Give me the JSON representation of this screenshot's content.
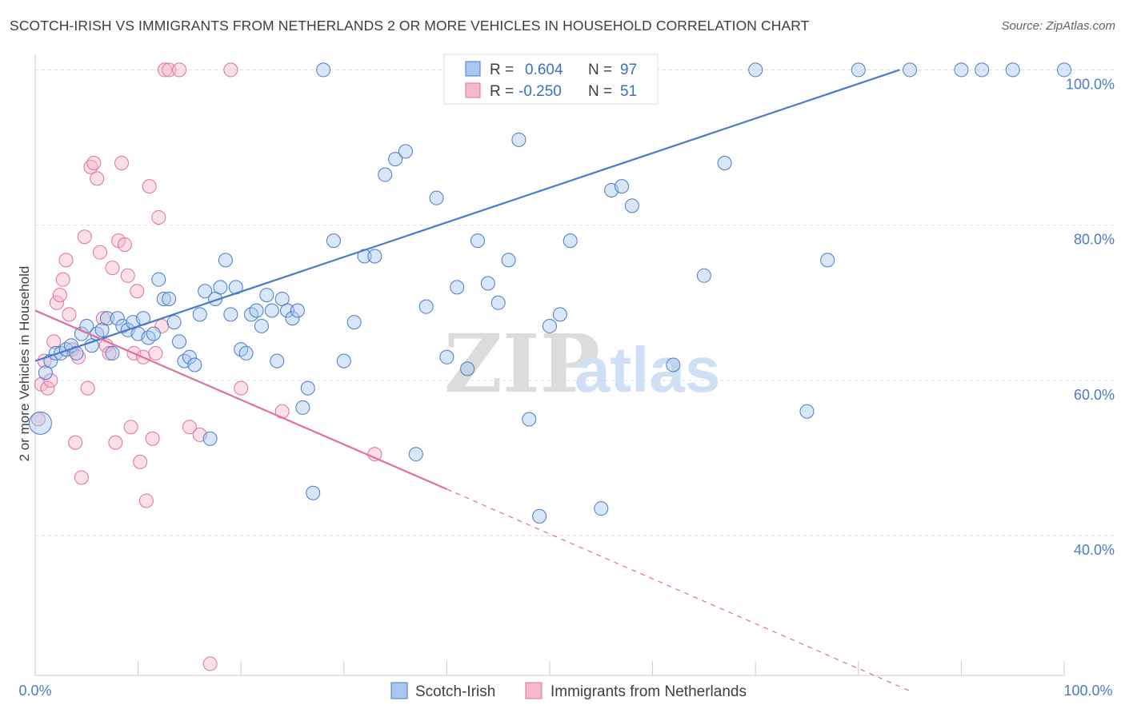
{
  "title": "SCOTCH-IRISH VS IMMIGRANTS FROM NETHERLANDS 2 OR MORE VEHICLES IN HOUSEHOLD CORRELATION CHART",
  "source": "Source: ZipAtlas.com",
  "watermark": {
    "zip": "ZIP",
    "atlas": "atlas"
  },
  "colors": {
    "blue": "#4a7bc8",
    "blue_fill": "#a9c8ee",
    "pink": "#e0709a",
    "pink_fill": "#f5b8cc",
    "grid": "#dddddd"
  },
  "legend": {
    "rows": [
      {
        "r_label": "R = ",
        "r_value": "0.604",
        "n_label": "N = ",
        "n_value": "97"
      },
      {
        "r_label": "R = ",
        "r_value": "-0.250",
        "n_label": "N = ",
        "n_value": "51"
      }
    ]
  },
  "bottom_legend": [
    "Scotch-Irish",
    "Immigrants from Netherlands"
  ],
  "chart_data": {
    "type": "scatter",
    "xlabel": "",
    "ylabel": "2 or more Vehicles in Household",
    "xlim": [
      0,
      100
    ],
    "ylim": [
      22,
      102
    ],
    "x_tick_labels": [
      "0.0%",
      "100.0%"
    ],
    "y_ticks": [
      40,
      60,
      80,
      100
    ],
    "y_tick_labels": [
      "40.0%",
      "60.0%",
      "80.0%",
      "100.0%"
    ],
    "grid": true,
    "legend_position": "top-center",
    "series": [
      {
        "name": "Scotch-Irish",
        "R": 0.604,
        "N": 97,
        "trend": [
          [
            0,
            62.5
          ],
          [
            84,
            100
          ]
        ],
        "points": [
          [
            0.5,
            54.5
          ],
          [
            1,
            61
          ],
          [
            1.5,
            62.5
          ],
          [
            2,
            63.5
          ],
          [
            2.5,
            63.5
          ],
          [
            3,
            64
          ],
          [
            3.5,
            64.5
          ],
          [
            4,
            63.5
          ],
          [
            4.5,
            66
          ],
          [
            5,
            67
          ],
          [
            5.5,
            64.5
          ],
          [
            6,
            66
          ],
          [
            6.5,
            66.5
          ],
          [
            7,
            68
          ],
          [
            7.5,
            63.5
          ],
          [
            8,
            68
          ],
          [
            8.5,
            67
          ],
          [
            9,
            66.5
          ],
          [
            9.5,
            67.5
          ],
          [
            10,
            66
          ],
          [
            10.5,
            68
          ],
          [
            11,
            65.5
          ],
          [
            11.5,
            66
          ],
          [
            12,
            73
          ],
          [
            12.5,
            70.5
          ],
          [
            13,
            70.5
          ],
          [
            13.5,
            67.5
          ],
          [
            14,
            65
          ],
          [
            14.5,
            62.5
          ],
          [
            15,
            63
          ],
          [
            15.5,
            62
          ],
          [
            16,
            68.5
          ],
          [
            16.5,
            71.5
          ],
          [
            17,
            52.5
          ],
          [
            17.5,
            70.5
          ],
          [
            18,
            72
          ],
          [
            18.5,
            75.5
          ],
          [
            19,
            68.5
          ],
          [
            19.5,
            72
          ],
          [
            20,
            64
          ],
          [
            20.5,
            63.5
          ],
          [
            21,
            68.5
          ],
          [
            21.5,
            69
          ],
          [
            22,
            67
          ],
          [
            22.5,
            71
          ],
          [
            23,
            69
          ],
          [
            23.5,
            62.5
          ],
          [
            24,
            70.5
          ],
          [
            24.5,
            69
          ],
          [
            25,
            68
          ],
          [
            25.5,
            69
          ],
          [
            26,
            56.5
          ],
          [
            26.5,
            59
          ],
          [
            27,
            45.5
          ],
          [
            28,
            100
          ],
          [
            29,
            78
          ],
          [
            30,
            62.5
          ],
          [
            31,
            67.5
          ],
          [
            32,
            76
          ],
          [
            33,
            76
          ],
          [
            34,
            86.5
          ],
          [
            35,
            88.5
          ],
          [
            36,
            89.5
          ],
          [
            37,
            50.5
          ],
          [
            38,
            69.5
          ],
          [
            39,
            83.5
          ],
          [
            40,
            63
          ],
          [
            41,
            72
          ],
          [
            42,
            61.5
          ],
          [
            43,
            78
          ],
          [
            44,
            72.5
          ],
          [
            45,
            70
          ],
          [
            46,
            75.5
          ],
          [
            47,
            91
          ],
          [
            48,
            55
          ],
          [
            49,
            42.5
          ],
          [
            50,
            67
          ],
          [
            51,
            68.5
          ],
          [
            52,
            78
          ],
          [
            53,
            100
          ],
          [
            54,
            100
          ],
          [
            55,
            43.5
          ],
          [
            56,
            84.5
          ],
          [
            57,
            85
          ],
          [
            58,
            82.5
          ],
          [
            62,
            62
          ],
          [
            65,
            73.5
          ],
          [
            67,
            88
          ],
          [
            70,
            100
          ],
          [
            75,
            56
          ],
          [
            77,
            75.5
          ],
          [
            80,
            100
          ],
          [
            85,
            100
          ],
          [
            90,
            100
          ],
          [
            92,
            100
          ],
          [
            95,
            100
          ],
          [
            100,
            100
          ]
        ]
      },
      {
        "name": "Immigrants from Netherlands",
        "R": -0.25,
        "N": 51,
        "trend": [
          [
            0,
            69
          ],
          [
            40,
            46
          ]
        ],
        "trend_dashed": [
          [
            40,
            46
          ],
          [
            85,
            20
          ]
        ],
        "points": [
          [
            0.3,
            55
          ],
          [
            0.6,
            59.5
          ],
          [
            0.9,
            62.5
          ],
          [
            1.2,
            59
          ],
          [
            1.5,
            60
          ],
          [
            1.8,
            65
          ],
          [
            2.1,
            70
          ],
          [
            2.4,
            71
          ],
          [
            2.7,
            73
          ],
          [
            3,
            75.5
          ],
          [
            3.3,
            68.5
          ],
          [
            3.6,
            64
          ],
          [
            3.9,
            52
          ],
          [
            4.2,
            63
          ],
          [
            4.5,
            47.5
          ],
          [
            4.8,
            78.5
          ],
          [
            5.1,
            59
          ],
          [
            5.4,
            87.5
          ],
          [
            5.7,
            88
          ],
          [
            6,
            86
          ],
          [
            6.3,
            76.5
          ],
          [
            6.6,
            68
          ],
          [
            6.9,
            64.5
          ],
          [
            7.2,
            63.5
          ],
          [
            7.5,
            74.5
          ],
          [
            7.8,
            52
          ],
          [
            8.1,
            78
          ],
          [
            8.4,
            88
          ],
          [
            8.7,
            77.5
          ],
          [
            9,
            73.5
          ],
          [
            9.3,
            54
          ],
          [
            9.6,
            63.5
          ],
          [
            9.9,
            71.5
          ],
          [
            10.2,
            49.5
          ],
          [
            10.5,
            63
          ],
          [
            10.8,
            44.5
          ],
          [
            11.1,
            85
          ],
          [
            11.4,
            52.5
          ],
          [
            11.7,
            63.5
          ],
          [
            12,
            81
          ],
          [
            12.3,
            67
          ],
          [
            12.6,
            100
          ],
          [
            13,
            100
          ],
          [
            14,
            100
          ],
          [
            15,
            54
          ],
          [
            16,
            53
          ],
          [
            17,
            23.5
          ],
          [
            19,
            100
          ],
          [
            20,
            59
          ],
          [
            24,
            56
          ],
          [
            33,
            50.5
          ]
        ]
      }
    ]
  }
}
